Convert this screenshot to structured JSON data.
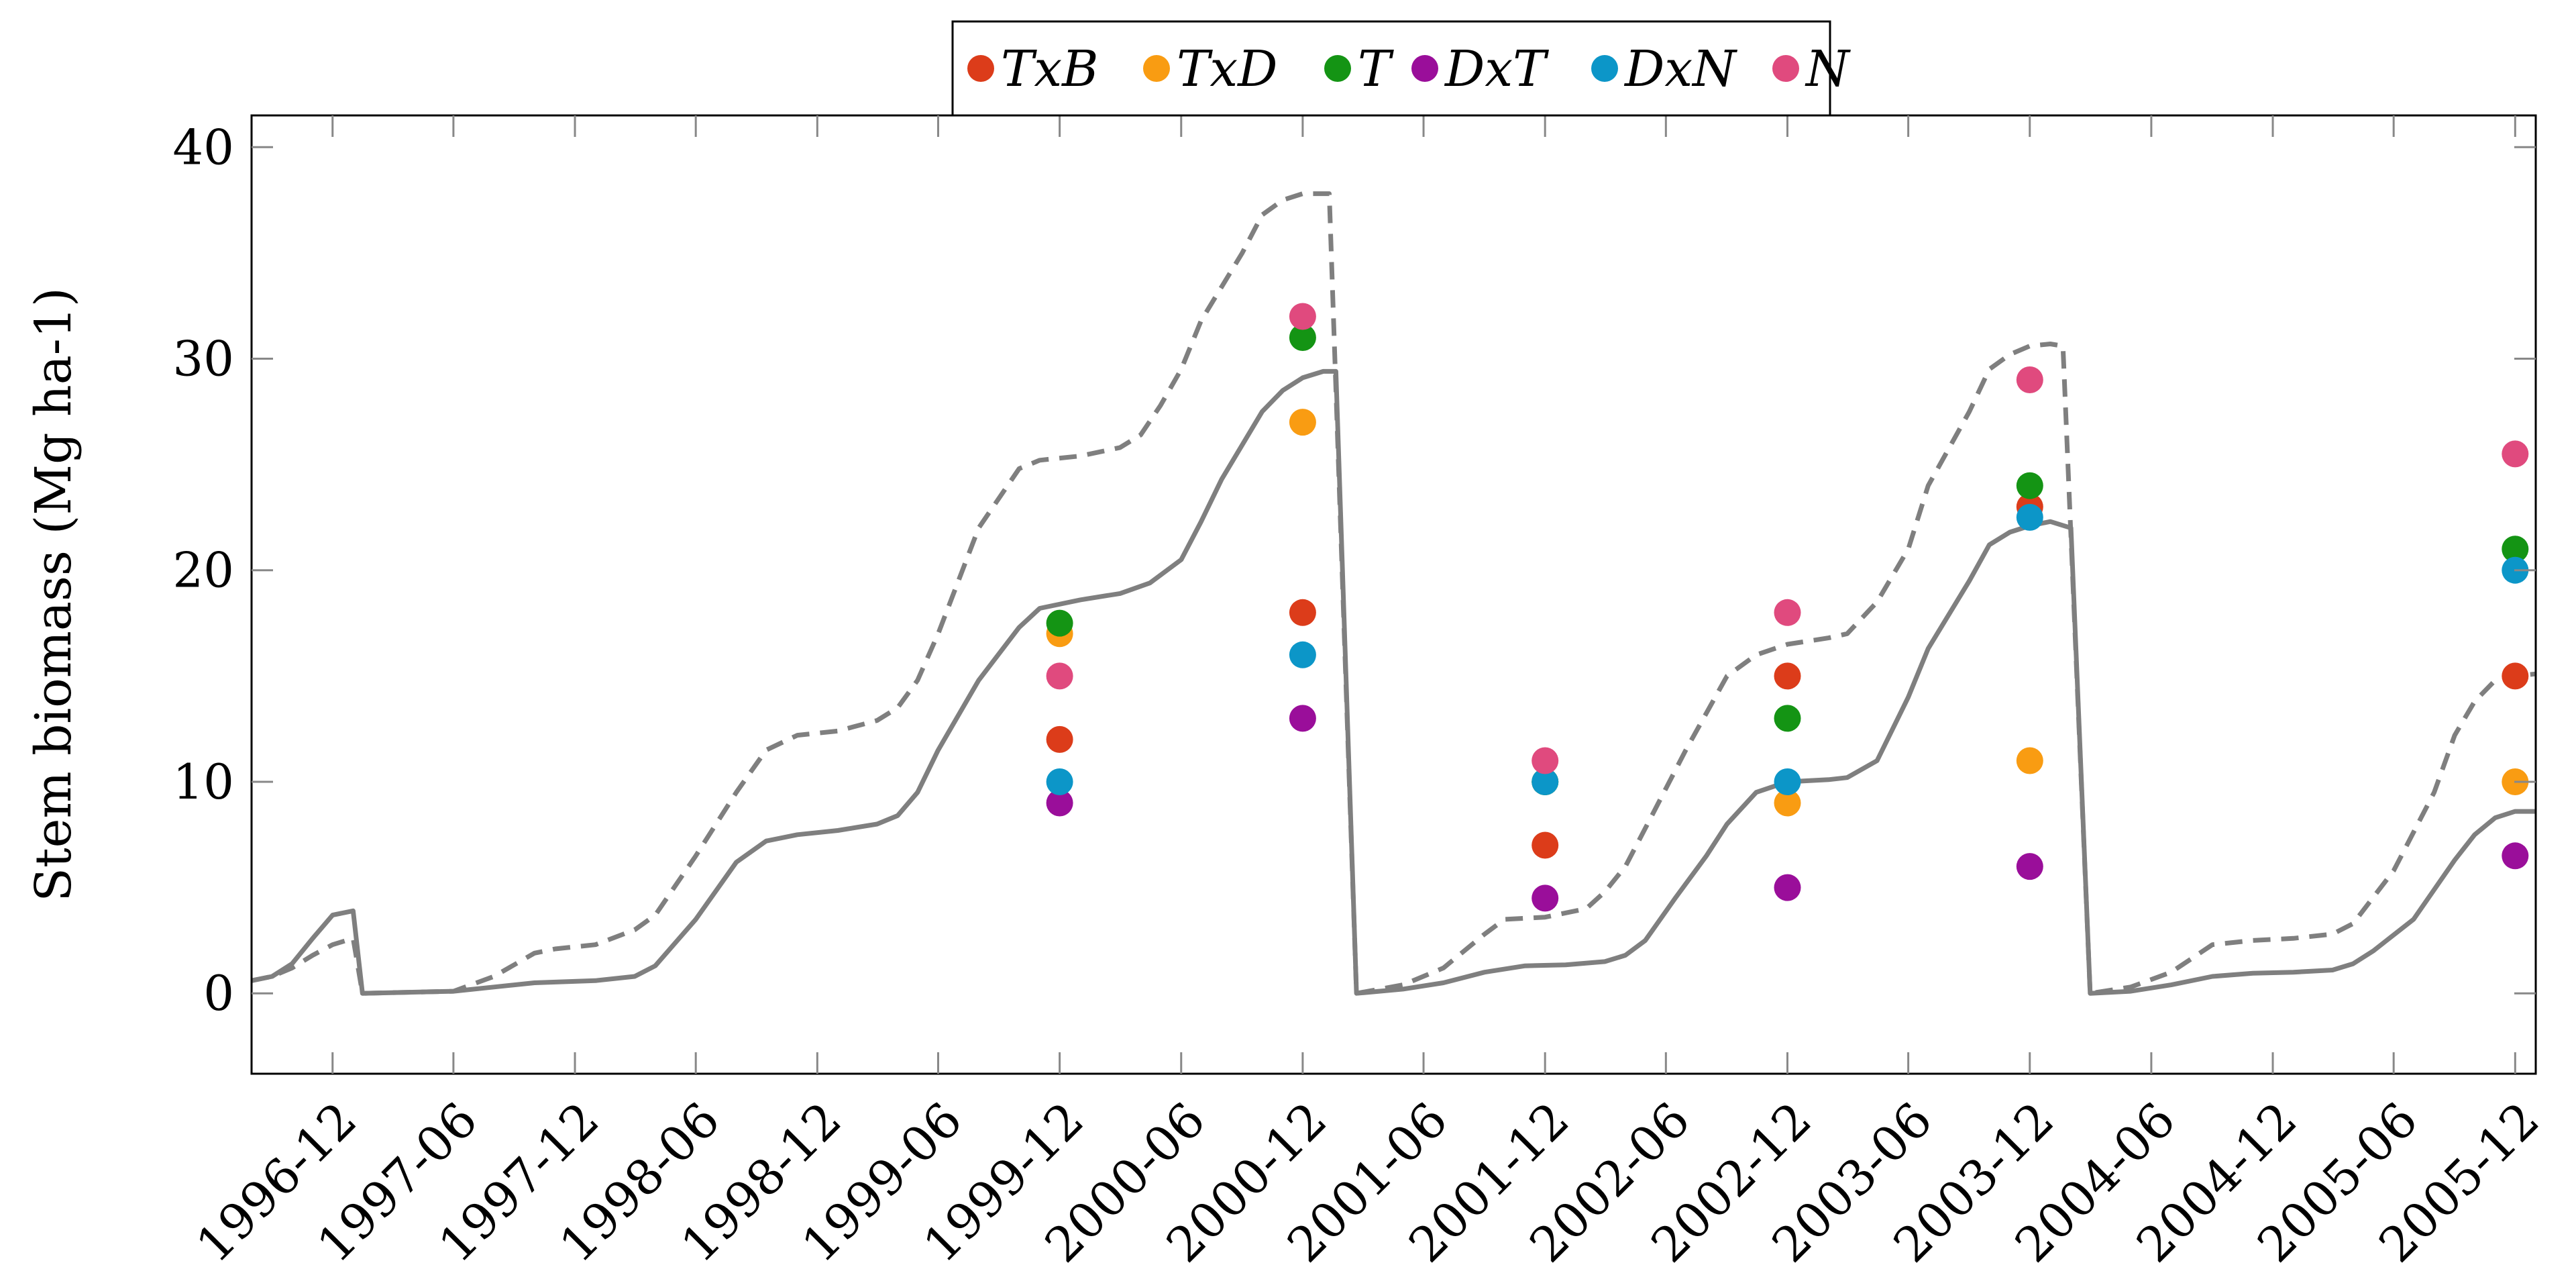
{
  "chart_data": {
    "type": "line",
    "title": "",
    "xlabel": "",
    "ylabel": "Stem biomass (Mg ha-1)",
    "ylim": [
      -3.8,
      41.5
    ],
    "xlim": [
      "1996-08-01",
      "2006-01-01"
    ],
    "yticks": [
      0,
      10,
      20,
      30,
      40
    ],
    "xticks": [
      "1996-12",
      "1997-06",
      "1997-12",
      "1998-06",
      "1998-12",
      "1999-06",
      "1999-12",
      "2000-06",
      "2000-12",
      "2001-06",
      "2001-12",
      "2002-06",
      "2002-12",
      "2003-06",
      "2003-12",
      "2004-06",
      "2004-12",
      "2005-06",
      "2005-12"
    ],
    "grid": false,
    "legend_position": "top-center",
    "lines": [
      {
        "style": "solid",
        "color": "#7f7f7f",
        "points": [
          [
            "1996-08-01",
            0.6
          ],
          [
            "1996-09-01",
            0.8
          ],
          [
            "1996-10-01",
            1.4
          ],
          [
            "1996-11-01",
            2.6
          ],
          [
            "1996-12-01",
            3.7
          ],
          [
            "1997-01-01",
            3.9
          ],
          [
            "1997-01-15",
            0.0
          ],
          [
            "1997-06-01",
            0.1
          ],
          [
            "1997-08-01",
            0.3
          ],
          [
            "1997-10-01",
            0.5
          ],
          [
            "1998-01-01",
            0.6
          ],
          [
            "1998-03-01",
            0.8
          ],
          [
            "1998-04-01",
            1.3
          ],
          [
            "1998-06-01",
            3.5
          ],
          [
            "1998-08-01",
            6.2
          ],
          [
            "1998-09-15",
            7.2
          ],
          [
            "1998-11-01",
            7.5
          ],
          [
            "1999-01-01",
            7.7
          ],
          [
            "1999-03-01",
            8.0
          ],
          [
            "1999-04-01",
            8.4
          ],
          [
            "1999-05-01",
            9.5
          ],
          [
            "1999-06-01",
            11.5
          ],
          [
            "1999-08-01",
            14.8
          ],
          [
            "1999-10-01",
            17.3
          ],
          [
            "1999-11-01",
            18.2
          ],
          [
            "2000-01-01",
            18.6
          ],
          [
            "2000-03-01",
            18.9
          ],
          [
            "2000-04-15",
            19.4
          ],
          [
            "2000-06-01",
            20.5
          ],
          [
            "2000-07-01",
            22.3
          ],
          [
            "2000-08-01",
            24.3
          ],
          [
            "2000-10-01",
            27.5
          ],
          [
            "2000-11-01",
            28.5
          ],
          [
            "2000-12-01",
            29.1
          ],
          [
            "2001-01-01",
            29.4
          ],
          [
            "2001-01-20",
            29.4
          ],
          [
            "2001-02-20",
            0.0
          ],
          [
            "2001-05-01",
            0.2
          ],
          [
            "2001-07-01",
            0.5
          ],
          [
            "2001-09-01",
            1.0
          ],
          [
            "2001-11-01",
            1.3
          ],
          [
            "2002-01-01",
            1.35
          ],
          [
            "2002-03-01",
            1.5
          ],
          [
            "2002-04-01",
            1.8
          ],
          [
            "2002-05-01",
            2.5
          ],
          [
            "2002-06-15",
            4.5
          ],
          [
            "2002-08-01",
            6.5
          ],
          [
            "2002-09-01",
            8.0
          ],
          [
            "2002-10-15",
            9.5
          ],
          [
            "2002-12-01",
            10.0
          ],
          [
            "2003-02-01",
            10.1
          ],
          [
            "2003-03-01",
            10.2
          ],
          [
            "2003-04-15",
            11.0
          ],
          [
            "2003-06-01",
            14.0
          ],
          [
            "2003-07-01",
            16.3
          ],
          [
            "2003-09-01",
            19.5
          ],
          [
            "2003-10-01",
            21.2
          ],
          [
            "2003-11-01",
            21.8
          ],
          [
            "2003-12-01",
            22.1
          ],
          [
            "2004-01-01",
            22.3
          ],
          [
            "2004-02-01",
            22.0
          ],
          [
            "2004-03-01",
            0.0
          ],
          [
            "2004-05-01",
            0.1
          ],
          [
            "2004-07-01",
            0.4
          ],
          [
            "2004-09-01",
            0.8
          ],
          [
            "2004-11-01",
            0.95
          ],
          [
            "2005-01-01",
            1.0
          ],
          [
            "2005-03-01",
            1.1
          ],
          [
            "2005-04-01",
            1.4
          ],
          [
            "2005-05-01",
            2.0
          ],
          [
            "2005-07-01",
            3.5
          ],
          [
            "2005-09-01",
            6.3
          ],
          [
            "2005-10-01",
            7.5
          ],
          [
            "2005-11-01",
            8.3
          ],
          [
            "2005-12-01",
            8.6
          ],
          [
            "2006-01-01",
            8.6
          ]
        ]
      },
      {
        "style": "dashed",
        "color": "#7f7f7f",
        "points": [
          [
            "1996-08-01",
            0.6
          ],
          [
            "1996-09-01",
            0.8
          ],
          [
            "1996-10-01",
            1.2
          ],
          [
            "1996-11-01",
            1.8
          ],
          [
            "1996-12-01",
            2.3
          ],
          [
            "1997-01-01",
            2.6
          ],
          [
            "1997-01-15",
            0.0
          ],
          [
            "1997-06-01",
            0.1
          ],
          [
            "1997-08-01",
            0.8
          ],
          [
            "1997-10-01",
            1.9
          ],
          [
            "1997-11-01",
            2.1
          ],
          [
            "1998-01-01",
            2.3
          ],
          [
            "1998-03-01",
            3.0
          ],
          [
            "1998-04-01",
            3.7
          ],
          [
            "1998-06-01",
            6.5
          ],
          [
            "1998-08-01",
            9.5
          ],
          [
            "1998-09-15",
            11.5
          ],
          [
            "1998-11-01",
            12.2
          ],
          [
            "1999-01-01",
            12.4
          ],
          [
            "1999-03-01",
            12.9
          ],
          [
            "1999-04-01",
            13.5
          ],
          [
            "1999-05-01",
            14.8
          ],
          [
            "1999-06-01",
            17.0
          ],
          [
            "1999-08-01",
            22.0
          ],
          [
            "1999-10-01",
            24.8
          ],
          [
            "1999-11-01",
            25.2
          ],
          [
            "2000-01-01",
            25.4
          ],
          [
            "2000-03-01",
            25.8
          ],
          [
            "2000-04-01",
            26.4
          ],
          [
            "2000-05-01",
            27.8
          ],
          [
            "2000-06-01",
            29.5
          ],
          [
            "2000-07-01",
            31.8
          ],
          [
            "2000-09-01",
            35.0
          ],
          [
            "2000-10-01",
            36.8
          ],
          [
            "2000-11-01",
            37.5
          ],
          [
            "2000-12-01",
            37.8
          ],
          [
            "2001-01-01",
            37.8
          ],
          [
            "2001-01-10",
            37.8
          ],
          [
            "2001-02-20",
            0.0
          ],
          [
            "2001-05-01",
            0.4
          ],
          [
            "2001-07-01",
            1.2
          ],
          [
            "2001-09-01",
            2.8
          ],
          [
            "2001-10-01",
            3.5
          ],
          [
            "2001-12-01",
            3.6
          ],
          [
            "2002-02-01",
            4.0
          ],
          [
            "2002-03-01",
            4.8
          ],
          [
            "2002-04-01",
            6.0
          ],
          [
            "2002-05-01",
            7.8
          ],
          [
            "2002-07-01",
            11.5
          ],
          [
            "2002-09-01",
            15.0
          ],
          [
            "2002-10-15",
            16.0
          ],
          [
            "2002-12-01",
            16.5
          ],
          [
            "2003-02-01",
            16.8
          ],
          [
            "2003-03-01",
            17.0
          ],
          [
            "2003-04-15",
            18.5
          ],
          [
            "2003-06-01",
            21.0
          ],
          [
            "2003-07-01",
            24.0
          ],
          [
            "2003-09-01",
            27.5
          ],
          [
            "2003-10-01",
            29.5
          ],
          [
            "2003-11-01",
            30.2
          ],
          [
            "2003-12-01",
            30.6
          ],
          [
            "2004-01-01",
            30.7
          ],
          [
            "2004-01-20",
            30.6
          ],
          [
            "2004-03-01",
            0.0
          ],
          [
            "2004-05-01",
            0.3
          ],
          [
            "2004-07-01",
            1.0
          ],
          [
            "2004-09-01",
            2.3
          ],
          [
            "2004-11-01",
            2.5
          ],
          [
            "2005-01-01",
            2.6
          ],
          [
            "2005-03-01",
            2.8
          ],
          [
            "2005-04-01",
            3.3
          ],
          [
            "2005-06-01",
            5.8
          ],
          [
            "2005-08-01",
            9.5
          ],
          [
            "2005-09-01",
            12.2
          ],
          [
            "2005-10-01",
            13.8
          ],
          [
            "2005-11-01",
            14.8
          ],
          [
            "2005-12-01",
            15.0
          ],
          [
            "2006-01-01",
            15.1
          ]
        ]
      }
    ],
    "scatter_series": [
      {
        "name": "TxB",
        "color": "#dc3c1a",
        "points": [
          [
            "1999-12",
            12
          ],
          [
            "2000-12",
            18
          ],
          [
            "2001-12",
            7
          ],
          [
            "2002-12",
            15
          ],
          [
            "2003-12",
            23
          ],
          [
            "2005-12",
            15
          ]
        ]
      },
      {
        "name": "TxD",
        "color": "#f99c12",
        "points": [
          [
            "1999-12",
            17
          ],
          [
            "2000-12",
            27
          ],
          [
            "2001-12",
            10
          ],
          [
            "2002-12",
            9
          ],
          [
            "2003-12",
            11
          ],
          [
            "2005-12",
            10
          ]
        ]
      },
      {
        "name": "T",
        "color": "#149414",
        "points": [
          [
            "1999-12",
            17.5
          ],
          [
            "2000-12",
            31
          ],
          [
            "2001-12",
            10
          ],
          [
            "2002-12",
            13
          ],
          [
            "2003-12",
            24
          ],
          [
            "2005-12",
            21
          ]
        ]
      },
      {
        "name": "DxT",
        "color": "#9a0e9a",
        "points": [
          [
            "1999-12",
            9
          ],
          [
            "2000-12",
            13
          ],
          [
            "2001-12",
            4.5
          ],
          [
            "2002-12",
            5
          ],
          [
            "2003-12",
            6
          ],
          [
            "2005-12",
            6.5
          ]
        ]
      },
      {
        "name": "DxN",
        "color": "#0c96c8",
        "points": [
          [
            "1999-12",
            10
          ],
          [
            "2000-12",
            16
          ],
          [
            "2001-12",
            10
          ],
          [
            "2002-12",
            10
          ],
          [
            "2003-12",
            22.5
          ],
          [
            "2005-12",
            20
          ]
        ]
      },
      {
        "name": "N",
        "color": "#e04a7e",
        "points": [
          [
            "1999-12",
            15
          ],
          [
            "2000-12",
            32
          ],
          [
            "2001-12",
            11
          ],
          [
            "2002-12",
            18
          ],
          [
            "2003-12",
            29
          ],
          [
            "2005-12",
            25.5
          ]
        ]
      }
    ]
  }
}
